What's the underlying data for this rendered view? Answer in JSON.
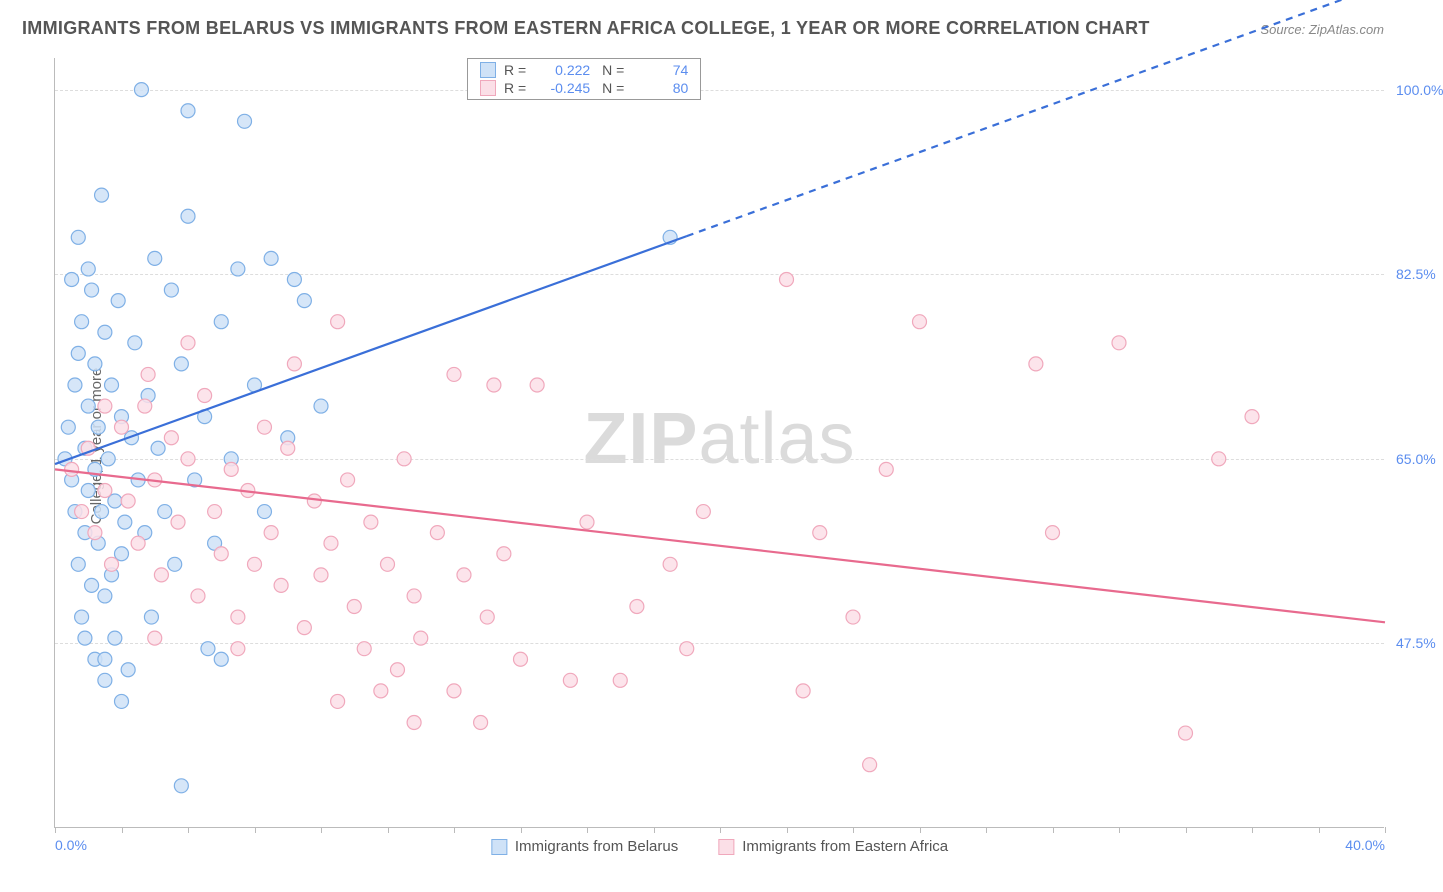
{
  "title": "IMMIGRANTS FROM BELARUS VS IMMIGRANTS FROM EASTERN AFRICA COLLEGE, 1 YEAR OR MORE CORRELATION CHART",
  "source": "Source: ZipAtlas.com",
  "y_label": "College, 1 year or more",
  "watermark_a": "ZIP",
  "watermark_b": "atlas",
  "chart": {
    "type": "scatter",
    "background_color": "#ffffff",
    "grid_color": "#dddddd",
    "axis_color": "#bbbbbb",
    "tick_label_color": "#5b8def",
    "xlim": [
      0,
      40
    ],
    "ylim": [
      30,
      103
    ],
    "x_ticks_minor_count": 20,
    "x_tick_labels": [
      {
        "x": 0.0,
        "label": "0.0%"
      },
      {
        "x": 40.0,
        "label": "40.0%"
      }
    ],
    "y_ticks": [
      {
        "y": 47.5,
        "label": "47.5%"
      },
      {
        "y": 65.0,
        "label": "65.0%"
      },
      {
        "y": 82.5,
        "label": "82.5%"
      },
      {
        "y": 100.0,
        "label": "100.0%"
      }
    ],
    "series": [
      {
        "id": "belarus",
        "label": "Immigrants from Belarus",
        "marker_fill": "#cfe2f7",
        "marker_stroke": "#7fb0e6",
        "marker_radius": 7,
        "line_color": "#3a6fd8",
        "line_width": 2.2,
        "line_dash_after_x": 19,
        "trend": {
          "x1": 0,
          "y1": 64.5,
          "x2": 40,
          "y2": 110
        },
        "R": "0.222",
        "N": "74",
        "points": [
          [
            0.3,
            65
          ],
          [
            0.4,
            68
          ],
          [
            0.5,
            63
          ],
          [
            0.6,
            72
          ],
          [
            0.6,
            60
          ],
          [
            0.7,
            55
          ],
          [
            0.7,
            75
          ],
          [
            0.8,
            78
          ],
          [
            0.8,
            50
          ],
          [
            0.9,
            66
          ],
          [
            0.9,
            58
          ],
          [
            1.0,
            62
          ],
          [
            1.0,
            70
          ],
          [
            1.1,
            81
          ],
          [
            1.1,
            53
          ],
          [
            1.2,
            64
          ],
          [
            1.2,
            74
          ],
          [
            1.3,
            68
          ],
          [
            1.3,
            57
          ],
          [
            1.4,
            60
          ],
          [
            1.4,
            90
          ],
          [
            1.5,
            52
          ],
          [
            1.5,
            77
          ],
          [
            1.6,
            65
          ],
          [
            1.7,
            54
          ],
          [
            1.7,
            72
          ],
          [
            1.8,
            61
          ],
          [
            1.8,
            48
          ],
          [
            1.9,
            80
          ],
          [
            2.0,
            56
          ],
          [
            2.0,
            69
          ],
          [
            2.1,
            59
          ],
          [
            2.2,
            45
          ],
          [
            2.3,
            67
          ],
          [
            2.4,
            76
          ],
          [
            2.5,
            63
          ],
          [
            2.6,
            100
          ],
          [
            2.7,
            58
          ],
          [
            2.8,
            71
          ],
          [
            2.9,
            50
          ],
          [
            3.0,
            84
          ],
          [
            3.1,
            66
          ],
          [
            3.3,
            60
          ],
          [
            3.5,
            81
          ],
          [
            3.6,
            55
          ],
          [
            3.8,
            74
          ],
          [
            4.0,
            88
          ],
          [
            4.0,
            98
          ],
          [
            4.2,
            63
          ],
          [
            4.5,
            69
          ],
          [
            4.8,
            57
          ],
          [
            5.0,
            78
          ],
          [
            5.0,
            46
          ],
          [
            5.3,
            65
          ],
          [
            5.5,
            83
          ],
          [
            5.7,
            97
          ],
          [
            6.0,
            72
          ],
          [
            6.3,
            60
          ],
          [
            6.5,
            84
          ],
          [
            7.0,
            67
          ],
          [
            7.2,
            82
          ],
          [
            7.5,
            80
          ],
          [
            8.0,
            70
          ],
          [
            3.8,
            34
          ],
          [
            1.5,
            44
          ],
          [
            2.0,
            42
          ],
          [
            1.2,
            46
          ],
          [
            0.9,
            48
          ],
          [
            1.5,
            46
          ],
          [
            0.5,
            82
          ],
          [
            0.7,
            86
          ],
          [
            1.0,
            83
          ],
          [
            18.5,
            86
          ],
          [
            4.6,
            47
          ]
        ]
      },
      {
        "id": "eastern_africa",
        "label": "Immigrants from Eastern Africa",
        "marker_fill": "#fbdfe7",
        "marker_stroke": "#f0a8bc",
        "marker_radius": 7,
        "line_color": "#e86a8e",
        "line_width": 2.2,
        "trend": {
          "x1": 0,
          "y1": 64.0,
          "x2": 40,
          "y2": 49.5
        },
        "R": "-0.245",
        "N": "80",
        "points": [
          [
            0.5,
            64
          ],
          [
            0.8,
            60
          ],
          [
            1.0,
            66
          ],
          [
            1.2,
            58
          ],
          [
            1.5,
            62
          ],
          [
            1.7,
            55
          ],
          [
            2.0,
            68
          ],
          [
            2.2,
            61
          ],
          [
            2.5,
            57
          ],
          [
            2.7,
            70
          ],
          [
            3.0,
            63
          ],
          [
            3.2,
            54
          ],
          [
            3.5,
            67
          ],
          [
            3.7,
            59
          ],
          [
            4.0,
            65
          ],
          [
            4.3,
            52
          ],
          [
            4.5,
            71
          ],
          [
            4.8,
            60
          ],
          [
            5.0,
            56
          ],
          [
            5.3,
            64
          ],
          [
            5.5,
            50
          ],
          [
            5.8,
            62
          ],
          [
            6.0,
            55
          ],
          [
            6.3,
            68
          ],
          [
            6.5,
            58
          ],
          [
            6.8,
            53
          ],
          [
            7.0,
            66
          ],
          [
            7.5,
            49
          ],
          [
            7.8,
            61
          ],
          [
            8.0,
            54
          ],
          [
            8.3,
            57
          ],
          [
            8.5,
            78
          ],
          [
            8.8,
            63
          ],
          [
            9.0,
            51
          ],
          [
            9.3,
            47
          ],
          [
            9.5,
            59
          ],
          [
            10.0,
            55
          ],
          [
            10.3,
            45
          ],
          [
            10.5,
            65
          ],
          [
            10.8,
            52
          ],
          [
            11.0,
            48
          ],
          [
            11.5,
            58
          ],
          [
            12.0,
            43
          ],
          [
            12.3,
            54
          ],
          [
            12.8,
            40
          ],
          [
            13.0,
            50
          ],
          [
            13.5,
            56
          ],
          [
            14.0,
            46
          ],
          [
            14.5,
            72
          ],
          [
            15.5,
            44
          ],
          [
            16.0,
            59
          ],
          [
            17.0,
            44
          ],
          [
            17.5,
            51
          ],
          [
            18.5,
            55
          ],
          [
            19.0,
            47
          ],
          [
            19.5,
            60
          ],
          [
            22.0,
            82
          ],
          [
            22.5,
            43
          ],
          [
            23.0,
            58
          ],
          [
            24.0,
            50
          ],
          [
            24.5,
            36
          ],
          [
            25.0,
            64
          ],
          [
            26.0,
            78
          ],
          [
            29.5,
            74
          ],
          [
            30.0,
            58
          ],
          [
            32.0,
            76
          ],
          [
            34.0,
            39
          ],
          [
            35.0,
            65
          ],
          [
            36.0,
            69
          ],
          [
            7.2,
            74
          ],
          [
            4.0,
            76
          ],
          [
            12.0,
            73
          ],
          [
            13.2,
            72
          ],
          [
            2.8,
            73
          ],
          [
            1.5,
            70
          ],
          [
            3.0,
            48
          ],
          [
            5.5,
            47
          ],
          [
            8.5,
            42
          ],
          [
            9.8,
            43
          ],
          [
            10.8,
            40
          ]
        ]
      }
    ]
  }
}
